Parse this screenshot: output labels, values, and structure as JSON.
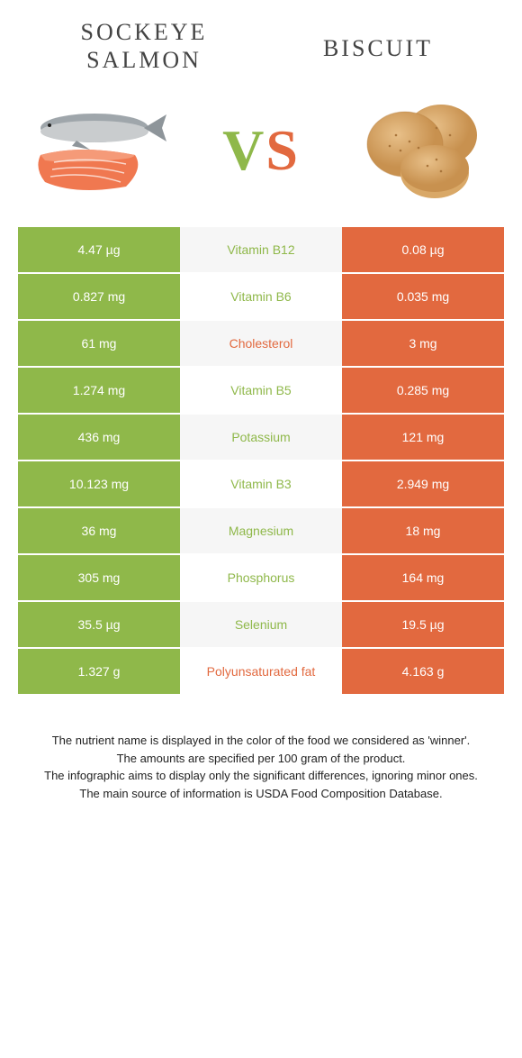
{
  "colors": {
    "left_bg": "#8fb84a",
    "right_bg": "#e2693f",
    "mid_left_text": "#8fb84a",
    "mid_right_text": "#e2693f",
    "row_alt_bg": "#f6f6f6",
    "page_bg": "#ffffff",
    "title_text": "#444444"
  },
  "header": {
    "left_title": "Sockeye salmon",
    "right_title": "Biscuit",
    "vs_v": "V",
    "vs_s": "S"
  },
  "rows": [
    {
      "left": "4.47 µg",
      "mid": "Vitamin B12",
      "right": "0.08 µg",
      "winner": "left"
    },
    {
      "left": "0.827 mg",
      "mid": "Vitamin B6",
      "right": "0.035 mg",
      "winner": "left"
    },
    {
      "left": "61 mg",
      "mid": "Cholesterol",
      "right": "3 mg",
      "winner": "right"
    },
    {
      "left": "1.274 mg",
      "mid": "Vitamin B5",
      "right": "0.285 mg",
      "winner": "left"
    },
    {
      "left": "436 mg",
      "mid": "Potassium",
      "right": "121 mg",
      "winner": "left"
    },
    {
      "left": "10.123 mg",
      "mid": "Vitamin B3",
      "right": "2.949 mg",
      "winner": "left"
    },
    {
      "left": "36 mg",
      "mid": "Magnesium",
      "right": "18 mg",
      "winner": "left"
    },
    {
      "left": "305 mg",
      "mid": "Phosphorus",
      "right": "164 mg",
      "winner": "left"
    },
    {
      "left": "35.5 µg",
      "mid": "Selenium",
      "right": "19.5 µg",
      "winner": "left"
    },
    {
      "left": "1.327 g",
      "mid": "Polyunsaturated fat",
      "right": "4.163 g",
      "winner": "right"
    }
  ],
  "footer": {
    "line1": "The nutrient name is displayed in the color of the food we considered as 'winner'.",
    "line2": "The amounts are specified per 100 gram of the product.",
    "line3": "The infographic aims to display only the significant differences, ignoring minor ones.",
    "line4": "The main source of information is USDA Food Composition Database."
  }
}
